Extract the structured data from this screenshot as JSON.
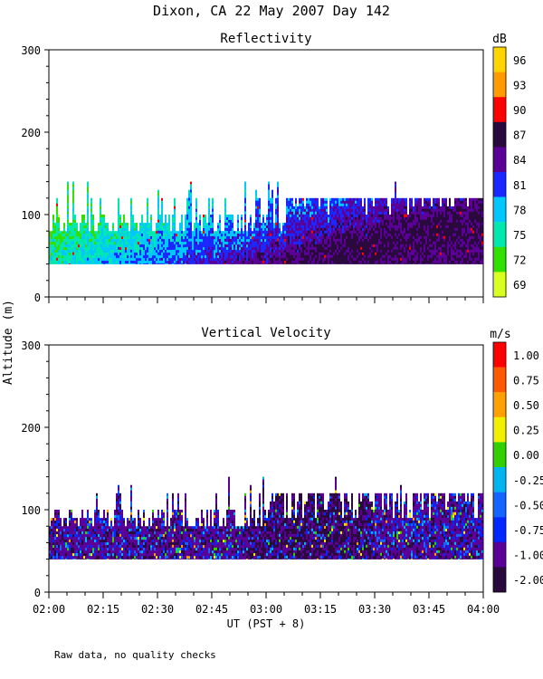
{
  "title": "Dixon, CA 22 May 2007  Day 142",
  "footer": "Raw data, no quality checks",
  "y_axis_label": "Altitude (m)",
  "x_axis_label": "UT  (PST + 8)",
  "chart_data": [
    {
      "type": "heatmap",
      "title": "Reflectivity",
      "ylabel": "Altitude (m)",
      "xlabel": "UT  (PST + 8)",
      "xlim": [
        "02:00",
        "04:00"
      ],
      "ylim": [
        0,
        300
      ],
      "x_ticks": [
        "02:00",
        "02:15",
        "02:30",
        "02:45",
        "03:00",
        "03:15",
        "03:30",
        "03:45",
        "04:00"
      ],
      "y_ticks": [
        "0",
        "100",
        "200",
        "300"
      ],
      "y_tick_values": [
        0,
        100,
        200,
        300
      ],
      "data_bottom_m": 40,
      "typical_top_m": 80,
      "max_top_m": 140,
      "colorbar": {
        "unit": "dB",
        "labels": [
          "96",
          "93",
          "90",
          "87",
          "84",
          "81",
          "78",
          "75",
          "72",
          "69"
        ],
        "colors": [
          "#ffd400",
          "#ff9a00",
          "#ff0000",
          "#2a0a3c",
          "#5a0096",
          "#1a28ff",
          "#00c8ff",
          "#00e8b0",
          "#32e000",
          "#d8ff20"
        ]
      },
      "description_series": [
        {
          "time": "02:00",
          "dominant_dB": 73
        },
        {
          "time": "02:30",
          "dominant_dB": 74
        },
        {
          "time": "03:00",
          "dominant_dB": 77
        },
        {
          "time": "03:30",
          "dominant_dB": 81
        },
        {
          "time": "04:00",
          "dominant_dB": 82
        }
      ]
    },
    {
      "type": "heatmap",
      "title": "Vertical Velocity",
      "ylabel": "Altitude (m)",
      "xlabel": "UT  (PST + 8)",
      "xlim": [
        "02:00",
        "04:00"
      ],
      "ylim": [
        0,
        300
      ],
      "x_ticks": [
        "02:00",
        "02:15",
        "02:30",
        "02:45",
        "03:00",
        "03:15",
        "03:30",
        "03:45",
        "04:00"
      ],
      "y_ticks": [
        "0",
        "100",
        "200",
        "300"
      ],
      "y_tick_values": [
        0,
        100,
        200,
        300
      ],
      "data_bottom_m": 40,
      "typical_top_m": 80,
      "max_top_m": 140,
      "colorbar": {
        "unit": "m/s",
        "labels": [
          "1.00",
          "0.75",
          "0.50",
          "0.25",
          "0.00",
          "-0.25",
          "-0.50",
          "-0.75",
          "-1.00",
          "-2.00"
        ],
        "colors": [
          "#ff0000",
          "#ff5a00",
          "#ffa000",
          "#f0f000",
          "#32d000",
          "#00b4f0",
          "#1464ff",
          "#0028ff",
          "#5a0096",
          "#2a0a3c"
        ]
      }
    }
  ]
}
